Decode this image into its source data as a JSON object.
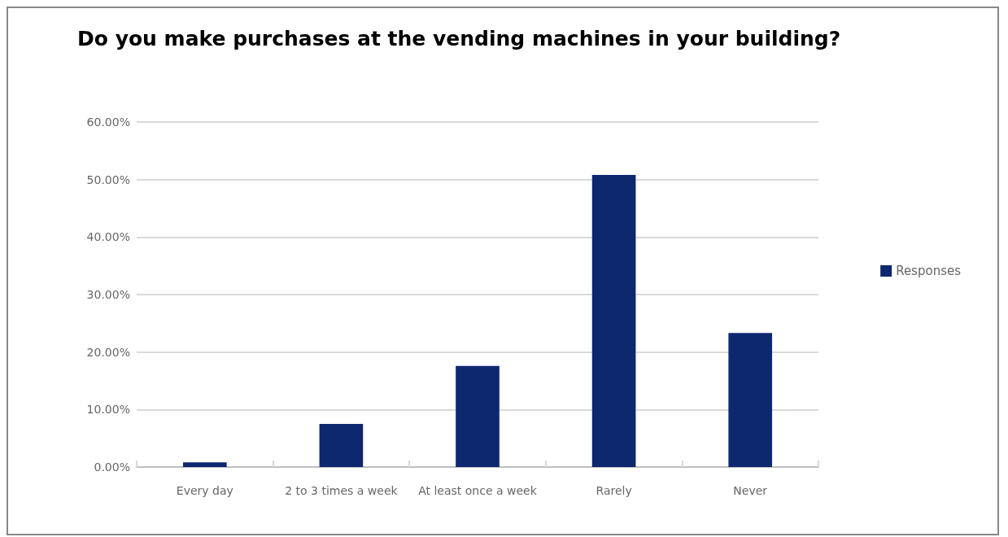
{
  "chart_data": {
    "type": "bar",
    "title": "Do you make purchases at the vending machines in your building?",
    "categories": [
      "Every day",
      "2 to 3 times a week",
      "At least once a week",
      "Rarely",
      "Never"
    ],
    "series": [
      {
        "name": "Responses",
        "color": "#0e2870",
        "values": [
          0.8,
          7.5,
          17.6,
          50.8,
          23.3
        ]
      }
    ],
    "ylim": [
      0,
      60
    ],
    "yticks": [
      {
        "value": 0,
        "label": "0.00%"
      },
      {
        "value": 10,
        "label": "10.00%"
      },
      {
        "value": 20,
        "label": "20.00%"
      },
      {
        "value": 30,
        "label": "30.00%"
      },
      {
        "value": 40,
        "label": "40.00%"
      },
      {
        "value": 50,
        "label": "50.00%"
      },
      {
        "value": 60,
        "label": "60.00%"
      }
    ],
    "grid": "y",
    "legend": "right"
  }
}
